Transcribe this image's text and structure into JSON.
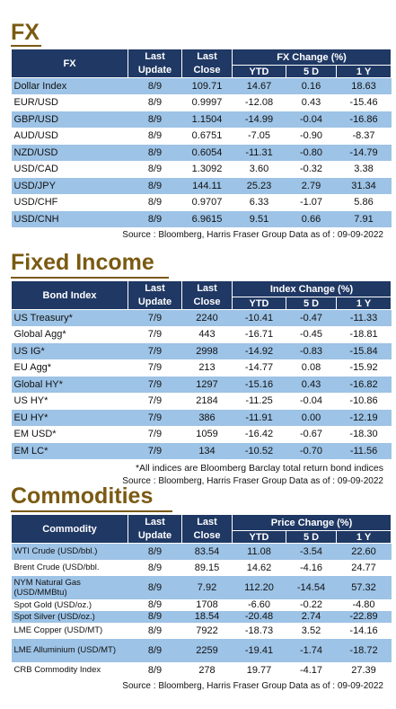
{
  "fx": {
    "title": "FX",
    "headers": {
      "col1": "FX",
      "last_update": "Last Update",
      "last_close": "Last Close",
      "group": "FX Change (%)",
      "ytd": "YTD",
      "d5": "5 D",
      "y1": "1 Y"
    },
    "rows": [
      [
        "Dollar Index",
        "8/9",
        "109.71",
        "14.67",
        "0.16",
        "18.63"
      ],
      [
        "EUR/USD",
        "8/9",
        "0.9997",
        "-12.08",
        "0.43",
        "-15.46"
      ],
      [
        "GBP/USD",
        "8/9",
        "1.1504",
        "-14.99",
        "-0.04",
        "-16.86"
      ],
      [
        "AUD/USD",
        "8/9",
        "0.6751",
        "-7.05",
        "-0.90",
        "-8.37"
      ],
      [
        "NZD/USD",
        "8/9",
        "0.6054",
        "-11.31",
        "-0.80",
        "-14.79"
      ],
      [
        "USD/CAD",
        "8/9",
        "1.3092",
        "3.60",
        "-0.32",
        "3.38"
      ],
      [
        "USD/JPY",
        "8/9",
        "144.11",
        "25.23",
        "2.79",
        "31.34"
      ],
      [
        "USD/CHF",
        "8/9",
        "0.9707",
        "6.33",
        "-1.07",
        "5.86"
      ],
      [
        "USD/CNH",
        "8/9",
        "6.9615",
        "9.51",
        "0.66",
        "7.91"
      ]
    ],
    "source": "Source : Bloomberg, Harris Fraser Group Data as of : 09-09-2022"
  },
  "fixed_income": {
    "title": "Fixed Income",
    "headers": {
      "col1": "Bond Index",
      "last_update": "Last Update",
      "last_close": "Last Close",
      "group": "Index Change (%)",
      "ytd": "YTD",
      "d5": "5 D",
      "y1": "1 Y"
    },
    "rows": [
      [
        "US Treasury*",
        "7/9",
        "2240",
        "-10.41",
        "-0.47",
        "-11.33"
      ],
      [
        "Global Agg*",
        "7/9",
        "443",
        "-16.71",
        "-0.45",
        "-18.81"
      ],
      [
        "US IG*",
        "7/9",
        "2998",
        "-14.92",
        "-0.83",
        "-15.84"
      ],
      [
        "EU Agg*",
        "7/9",
        "213",
        "-14.77",
        "0.08",
        "-15.92"
      ],
      [
        "Global HY*",
        "7/9",
        "1297",
        "-15.16",
        "0.43",
        "-16.82"
      ],
      [
        "US HY*",
        "7/9",
        "2184",
        "-11.25",
        "-0.04",
        "-10.86"
      ],
      [
        "EU HY*",
        "7/9",
        "386",
        "-11.91",
        "0.00",
        "-12.19"
      ],
      [
        "EM USD*",
        "7/9",
        "1059",
        "-16.42",
        "-0.67",
        "-18.30"
      ],
      [
        "EM LC*",
        "7/9",
        "134",
        "-10.52",
        "-0.70",
        "-11.56"
      ]
    ],
    "note": "*All indices are Bloomberg Barclay total return bond indices",
    "source": "Source : Bloomberg, Harris Fraser Group Data as of : 09-09-2022"
  },
  "commodities": {
    "title": "Commodities",
    "headers": {
      "col1": "Commodity",
      "last_update": "Last Update",
      "last_close": "Last Close",
      "group": "Price Change (%)",
      "ytd": "YTD",
      "d5": "5 D",
      "y1": "1 Y"
    },
    "rows": [
      [
        "WTI Crude (USD/bbl.)",
        "8/9",
        "83.54",
        "11.08",
        "-3.54",
        "22.60"
      ],
      [
        "Brent Crude (USD/bbl.",
        "8/9",
        "89.15",
        "14.62",
        "-4.16",
        "24.77"
      ],
      [
        "NYM Natural Gas (USD/MMBtu)",
        "8/9",
        "7.92",
        "112.20",
        "-14.54",
        "57.32"
      ],
      [
        "Spot Gold (USD/oz.)",
        "8/9",
        "1708",
        "-6.60",
        "-0.22",
        "-4.80"
      ],
      [
        "Spot Silver (USD/oz.)",
        "8/9",
        "18.54",
        "-20.48",
        "2.74",
        "-22.89"
      ],
      [
        "LME Copper (USD/MT)",
        "8/9",
        "7922",
        "-18.73",
        "3.52",
        "-14.16"
      ],
      [
        "LME Alluminium (USD/MT)",
        "8/9",
        "2259",
        "-19.41",
        "-1.74",
        "-18.72"
      ],
      [
        "CRB Commodity Index",
        "8/9",
        "278",
        "19.77",
        "-4.17",
        "27.39"
      ]
    ],
    "source": "Source : Bloomberg, Harris Fraser Group Data as of : 09-09-2022"
  }
}
